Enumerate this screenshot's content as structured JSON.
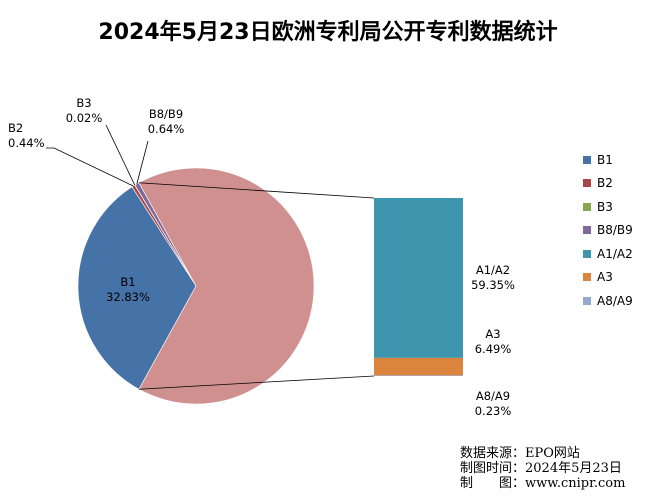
{
  "chart_data": {
    "type": "bar-of-pie",
    "title": "2024年5月23日欧洲专利局公开专利数据统计",
    "colors": {
      "B1": "#4572A7",
      "B2": "#AA4643",
      "B3": "#89A54E",
      "B8/B9": "#80699B",
      "A1/A2": "#3D96AE",
      "A3": "#DB843D",
      "A8/A9": "#93A9CF",
      "other_slice": "#D09090"
    },
    "pie_slices": [
      {
        "name": "B1",
        "value": 32.83,
        "label": "32.83%"
      },
      {
        "name": "B2",
        "value": 0.44,
        "label": "0.44%"
      },
      {
        "name": "B3",
        "value": 0.02,
        "label": "0.02%"
      },
      {
        "name": "B8/B9",
        "value": 0.64,
        "label": "0.64%"
      }
    ],
    "bar_segments": [
      {
        "name": "A1/A2",
        "value": 59.35,
        "label": "59.35%"
      },
      {
        "name": "A3",
        "value": 6.49,
        "label": "6.49%"
      },
      {
        "name": "A8/A9",
        "value": 0.23,
        "label": "0.23%"
      }
    ],
    "legend": [
      "B1",
      "B2",
      "B3",
      "B8/B9",
      "A1/A2",
      "A3",
      "A8/A9"
    ],
    "legend_position": "right"
  },
  "source": {
    "line1": "数据来源：EPO网站",
    "line2": "制图时间：2024年5月23日",
    "line3": "制　　图：www.cnipr.com"
  }
}
